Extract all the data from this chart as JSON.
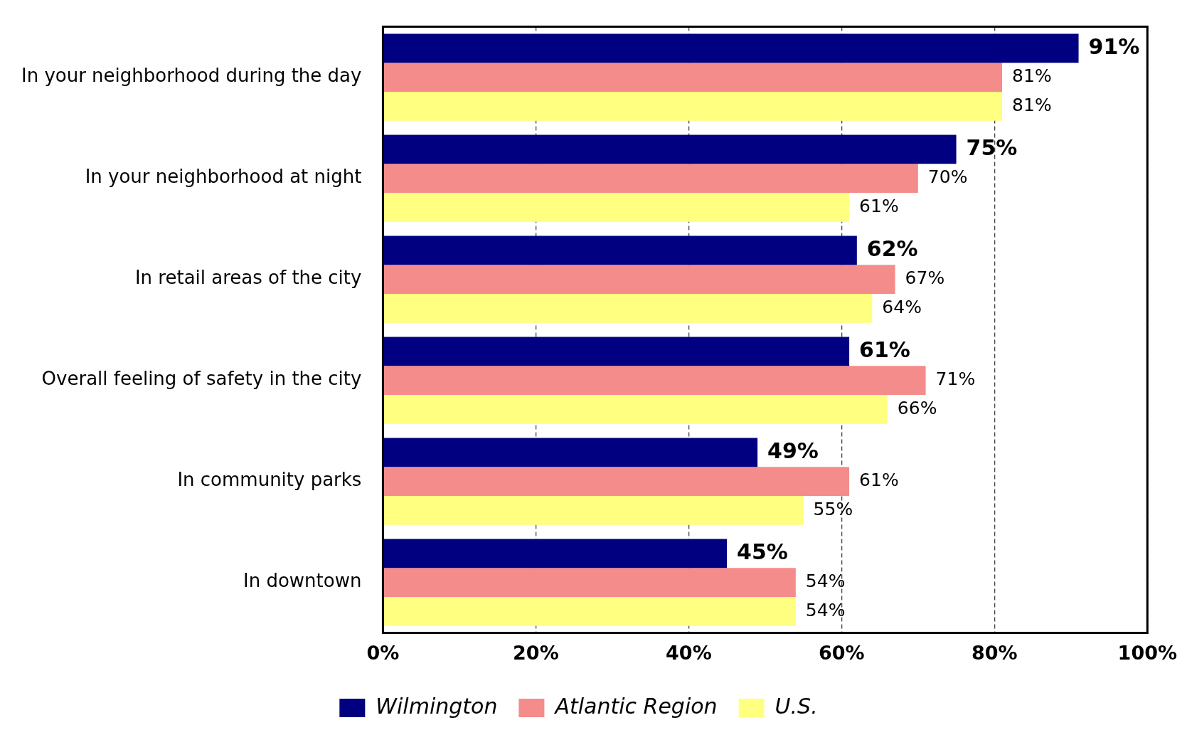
{
  "chart_data": {
    "type": "bar",
    "orientation": "horizontal",
    "categories": [
      "In your neighborhood during the day",
      "In your neighborhood at night",
      "In retail areas of the city",
      "Overall feeling of safety in the city",
      "In community parks",
      "In downtown"
    ],
    "series": [
      {
        "name": "Wilmington",
        "color": "#000080",
        "values": [
          91,
          75,
          62,
          61,
          49,
          45
        ],
        "value_labels": [
          "91%",
          "75%",
          "62%",
          "61%",
          "49%",
          "45%"
        ]
      },
      {
        "name": "Atlantic Region",
        "color": "#f48c8c",
        "values": [
          81,
          70,
          67,
          71,
          61,
          54
        ],
        "value_labels": [
          "81%",
          "70%",
          "67%",
          "71%",
          "61%",
          "54%"
        ]
      },
      {
        "name": "U.S.",
        "color": "#ffff80",
        "values": [
          81,
          61,
          64,
          66,
          55,
          54
        ],
        "value_labels": [
          "81%",
          "61%",
          "64%",
          "66%",
          "55%",
          "54%"
        ]
      }
    ],
    "xlim": [
      0,
      100
    ],
    "xticks": [
      {
        "value": 0,
        "label": "0%"
      },
      {
        "value": 20,
        "label": "20%"
      },
      {
        "value": 40,
        "label": "40%"
      },
      {
        "value": 60,
        "label": "60%"
      },
      {
        "value": 80,
        "label": "80%"
      },
      {
        "value": 100,
        "label": "100%"
      }
    ],
    "grid": "x",
    "legend": "bottom"
  }
}
